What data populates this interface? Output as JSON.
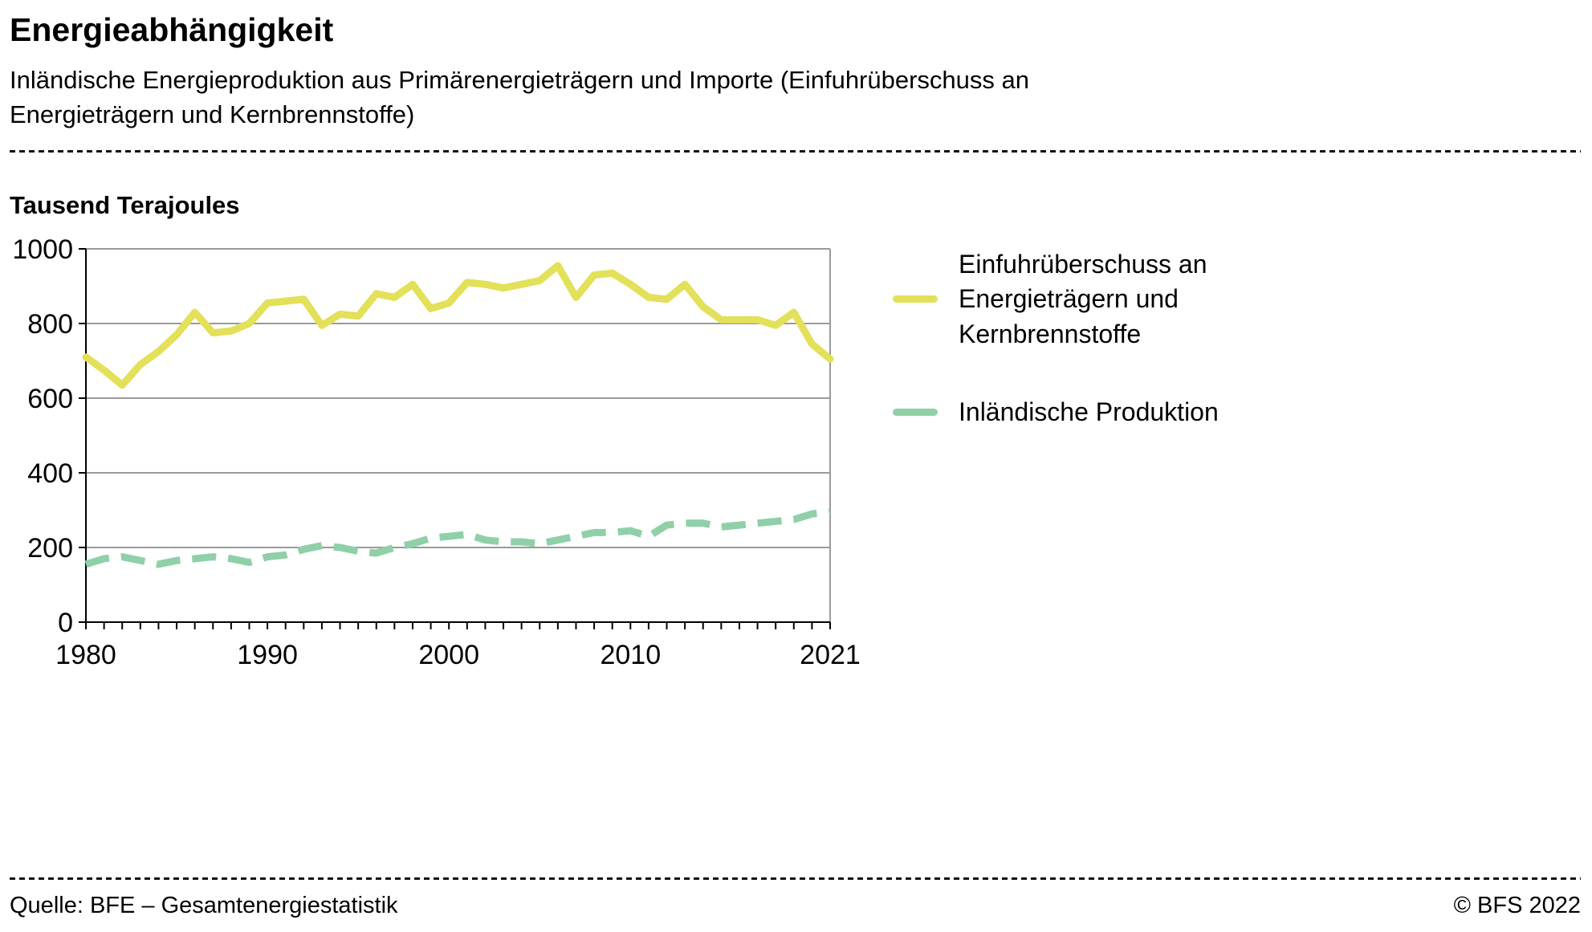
{
  "page": {
    "title": "Energieabhängigkeit",
    "subtitle": "Inländische Energieproduktion aus Primärenergieträgern und Importe (Einfuhrüberschuss an Energieträgern und Kernbrennstoffe)",
    "unit_label": "Tausend Terajoules",
    "source": "Quelle: BFE – Gesamtenergiestatistik",
    "copyright": "© BFS 2022"
  },
  "colors": {
    "imports_line": "#e3e059",
    "domestic_line": "#8fd0a8",
    "grid": "#9a9a9a",
    "axis": "#000000"
  },
  "chart_data": {
    "type": "line",
    "title": "Energieabhängigkeit",
    "ylabel": "Tausend Terajoules",
    "ylim": [
      0,
      1000
    ],
    "yticks": [
      0,
      200,
      400,
      600,
      800,
      1000
    ],
    "x": [
      1980,
      1981,
      1982,
      1983,
      1984,
      1985,
      1986,
      1987,
      1988,
      1989,
      1990,
      1991,
      1992,
      1993,
      1994,
      1995,
      1996,
      1997,
      1998,
      1999,
      2000,
      2001,
      2002,
      2003,
      2004,
      2005,
      2006,
      2007,
      2008,
      2009,
      2010,
      2011,
      2012,
      2013,
      2014,
      2015,
      2016,
      2017,
      2018,
      2019,
      2020,
      2021
    ],
    "xticks_labeled": [
      1980,
      1990,
      2000,
      2010,
      2021
    ],
    "grid": true,
    "legend_position": "right",
    "series": [
      {
        "name": "Einfuhrüberschuss an Energieträgern und Kernbrennstoffe",
        "color": "#e3e059",
        "dash": null,
        "width": 9,
        "values": [
          710,
          675,
          635,
          690,
          725,
          770,
          830,
          775,
          780,
          800,
          855,
          860,
          865,
          795,
          825,
          820,
          880,
          870,
          905,
          840,
          855,
          910,
          905,
          895,
          905,
          915,
          955,
          870,
          930,
          935,
          905,
          870,
          865,
          905,
          845,
          810,
          810,
          810,
          795,
          830,
          745,
          705
        ]
      },
      {
        "name": "Inländische Produktion",
        "color": "#8fd0a8",
        "dash": "30 15",
        "width": 9,
        "values": [
          155,
          170,
          175,
          165,
          155,
          165,
          170,
          175,
          170,
          160,
          175,
          180,
          195,
          205,
          200,
          190,
          185,
          200,
          210,
          225,
          230,
          235,
          220,
          215,
          215,
          210,
          220,
          230,
          240,
          240,
          245,
          230,
          260,
          265,
          265,
          255,
          260,
          265,
          270,
          275,
          290,
          295
        ]
      }
    ]
  }
}
